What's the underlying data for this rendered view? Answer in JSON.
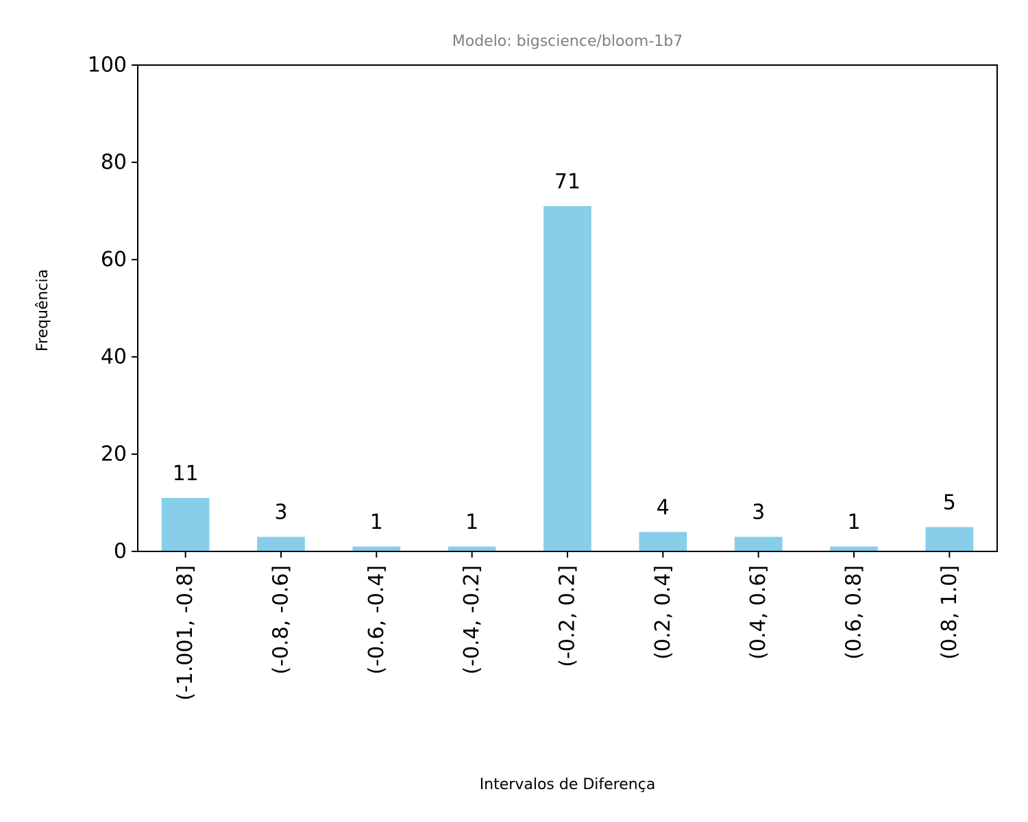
{
  "chart_data": {
    "type": "bar",
    "title": "Modelo: bigscience/bloom-1b7",
    "xlabel": "Intervalos de Diferença",
    "ylabel": "Frequência",
    "categories": [
      "(-1.001, -0.8]",
      "(-0.8, -0.6]",
      "(-0.6, -0.4]",
      "(-0.4, -0.2]",
      "(-0.2, 0.2]",
      "(0.2, 0.4]",
      "(0.4, 0.6]",
      "(0.6, 0.8]",
      "(0.8, 1.0]"
    ],
    "values": [
      11,
      3,
      1,
      1,
      71,
      4,
      3,
      1,
      5
    ],
    "data_labels": [
      "11",
      "3",
      "1",
      "1",
      "71",
      "4",
      "3",
      "1",
      "5"
    ],
    "ylim": [
      0,
      100
    ],
    "yticks": [
      0,
      20,
      40,
      60,
      80,
      100
    ],
    "ytick_labels": [
      "0",
      "20",
      "40",
      "60",
      "80",
      "100"
    ],
    "grid": false,
    "legend": "none",
    "colors": {
      "bar": "#87ceeb",
      "title": "#808080",
      "axis": "#000000"
    }
  }
}
